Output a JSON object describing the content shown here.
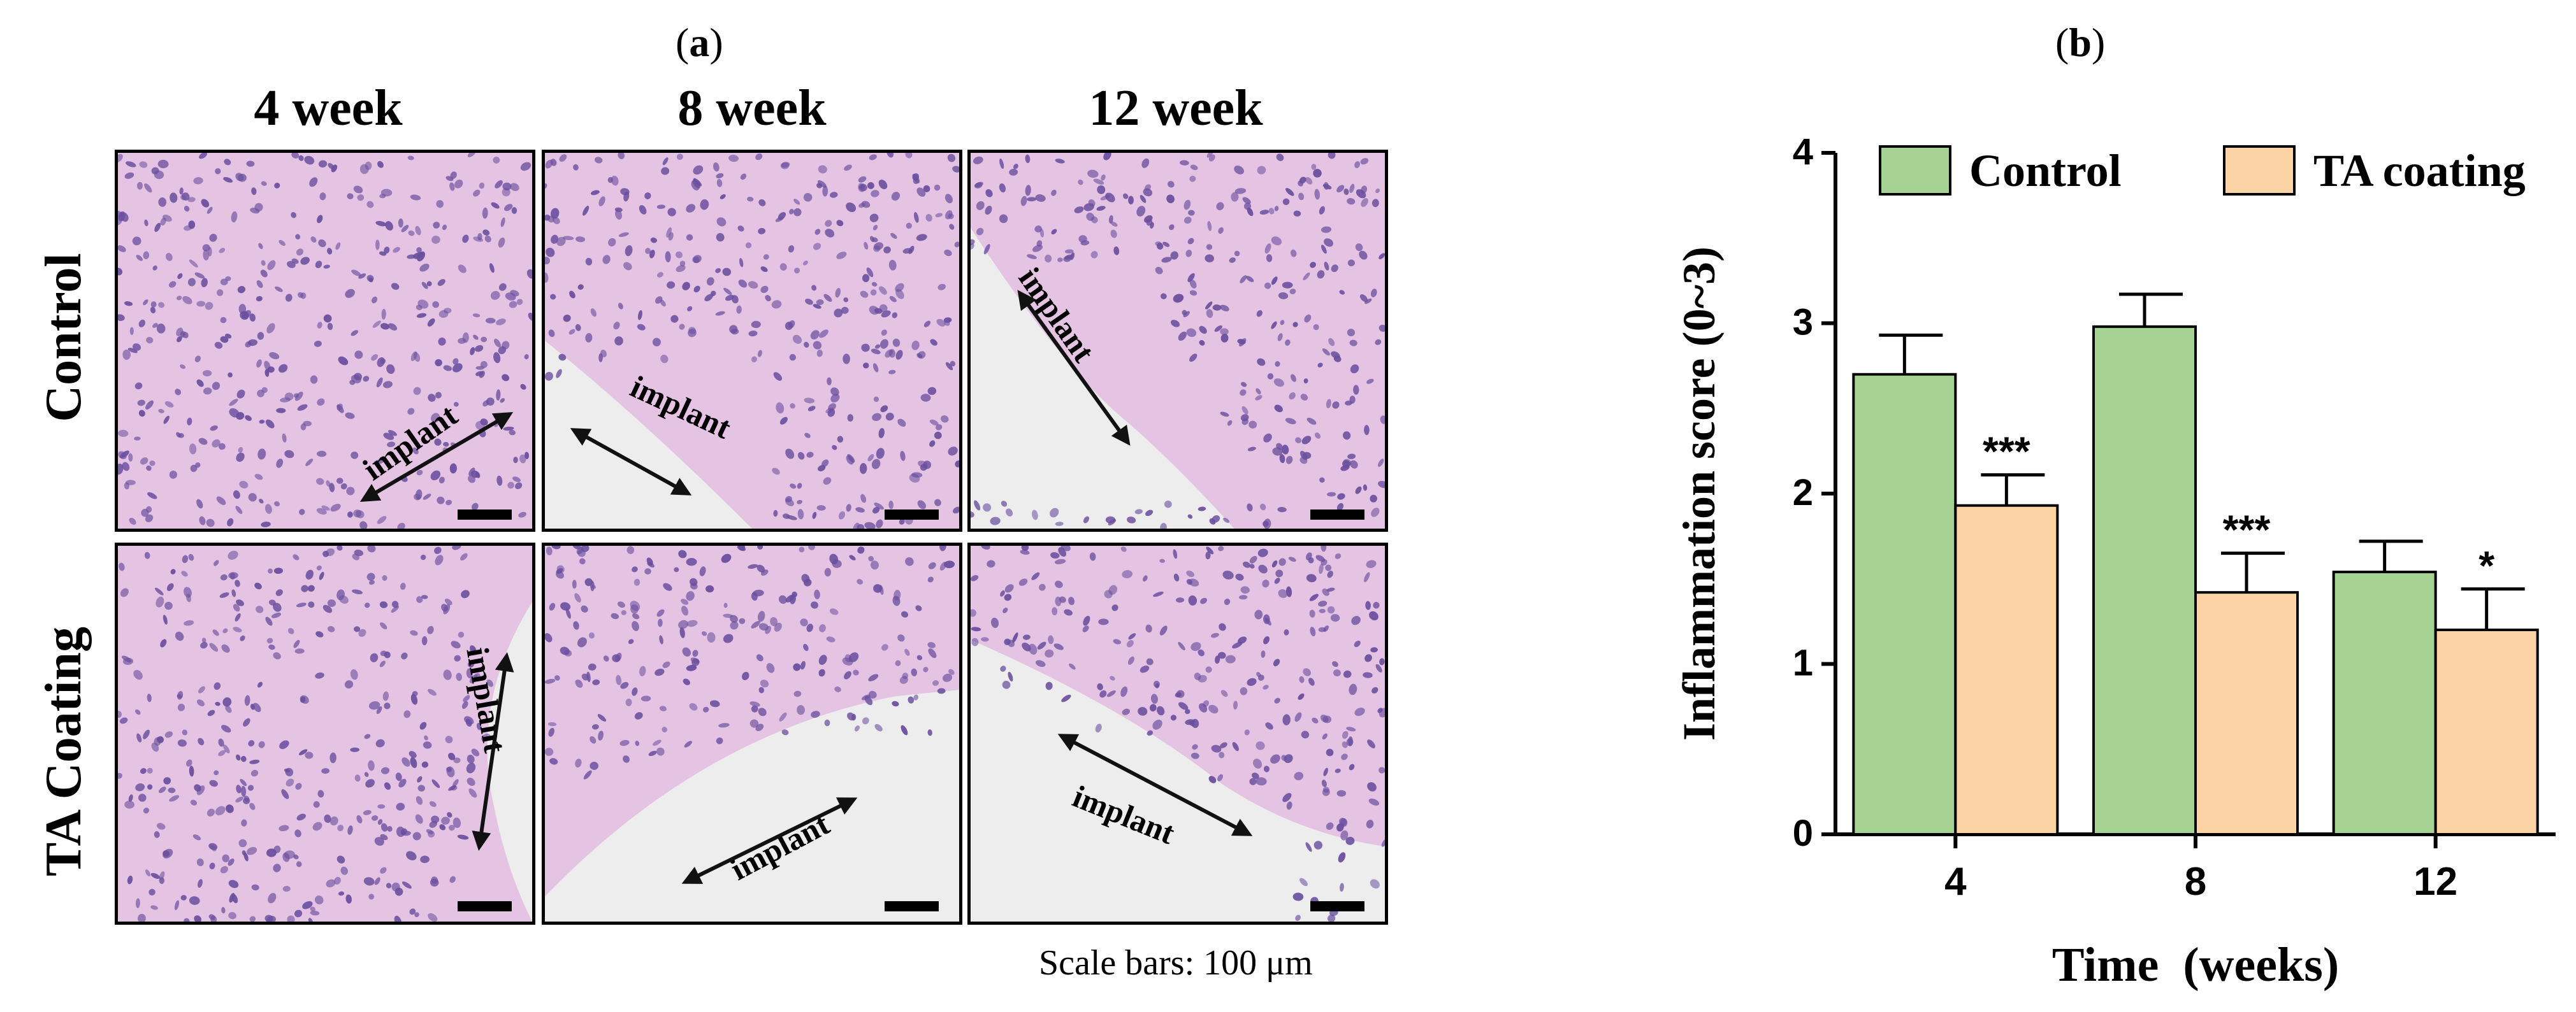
{
  "panel_a": {
    "letter": "a",
    "columns": [
      "4 week",
      "8 week",
      "12 week"
    ],
    "rows": [
      "Control",
      "TA Coating"
    ],
    "implant_label": "implant",
    "scale_note": "Scale bars: 100 μm"
  },
  "panel_b": {
    "letter": "b"
  },
  "colors": {
    "control": "#a6d394",
    "ta_coating": "#fcd3a4",
    "tissue": "#e5c3e3",
    "nuclei": "#6a4f9e",
    "implant_bg": "#ededed"
  },
  "chart_data": {
    "type": "bar",
    "categories": [
      "4",
      "8",
      "12"
    ],
    "series": [
      {
        "name": "Control",
        "values": [
          2.7,
          2.98,
          1.54
        ],
        "errors": [
          0.23,
          0.19,
          0.18
        ],
        "color": "#a6d394"
      },
      {
        "name": "TA coating",
        "values": [
          1.93,
          1.42,
          1.2
        ],
        "errors": [
          0.18,
          0.23,
          0.24
        ],
        "color": "#fcd3a4",
        "annotations": [
          "***",
          "***",
          "*"
        ]
      }
    ],
    "xlabel": "Time  (weeks)",
    "ylabel": "Inflammation score (0~3)",
    "ylim": [
      0,
      4
    ],
    "yticks": [
      0,
      1,
      2,
      3,
      4
    ],
    "legend": "top",
    "grid": false
  }
}
